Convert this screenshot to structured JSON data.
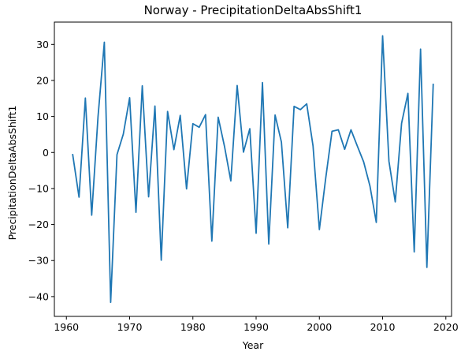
{
  "chart_data": {
    "type": "line",
    "title": "Norway - PrecipitationDeltaAbsShift1",
    "xlabel": "Year",
    "ylabel": "PrecipitationDeltaAbsShift1",
    "xlim": [
      1958.1,
      2020.9
    ],
    "ylim": [
      -45.5,
      36.2
    ],
    "x_ticks": [
      1960,
      1970,
      1980,
      1990,
      2000,
      2010,
      2020
    ],
    "y_ticks": [
      -40,
      -30,
      -20,
      -10,
      0,
      10,
      20,
      30
    ],
    "grid": false,
    "line_color": "#1f77b4",
    "series": [
      {
        "x": [
          1961,
          1962,
          1963,
          1964,
          1965,
          1966,
          1967,
          1968,
          1969,
          1970,
          1971,
          1972,
          1973,
          1974,
          1975,
          1976,
          1977,
          1978,
          1979,
          1980,
          1981,
          1982,
          1983,
          1984,
          1985,
          1986,
          1987,
          1988,
          1989,
          1990,
          1991,
          1992,
          1993,
          1994,
          1995,
          1996,
          1997,
          1998,
          1999,
          2000,
          2001,
          2002,
          2003,
          2004,
          2005,
          2006,
          2007,
          2008,
          2009,
          2010,
          2011,
          2012,
          2013,
          2014,
          2015,
          2016,
          2017,
          2018
        ],
        "values": [
          -0.6,
          -12.4,
          15.1,
          -17.4,
          9.9,
          30.6,
          -41.6,
          -0.6,
          5.1,
          15.2,
          -16.6,
          18.5,
          -12.3,
          12.9,
          -29.9,
          11.4,
          0.8,
          10.3,
          -10.1,
          8.0,
          7.0,
          10.5,
          -24.6,
          9.8,
          1.7,
          -7.9,
          18.6,
          0.1,
          6.6,
          -22.4,
          19.4,
          -25.4,
          10.4,
          2.9,
          -20.9,
          12.8,
          11.9,
          13.5,
          1.8,
          -21.4,
          -7.2,
          5.9,
          6.3,
          0.9,
          6.3,
          1.8,
          -2.6,
          -9.3,
          -19.4,
          32.4,
          -2.4,
          -13.7,
          8.1,
          16.4,
          -27.6,
          28.7,
          -31.9,
          18.9
        ]
      }
    ]
  }
}
